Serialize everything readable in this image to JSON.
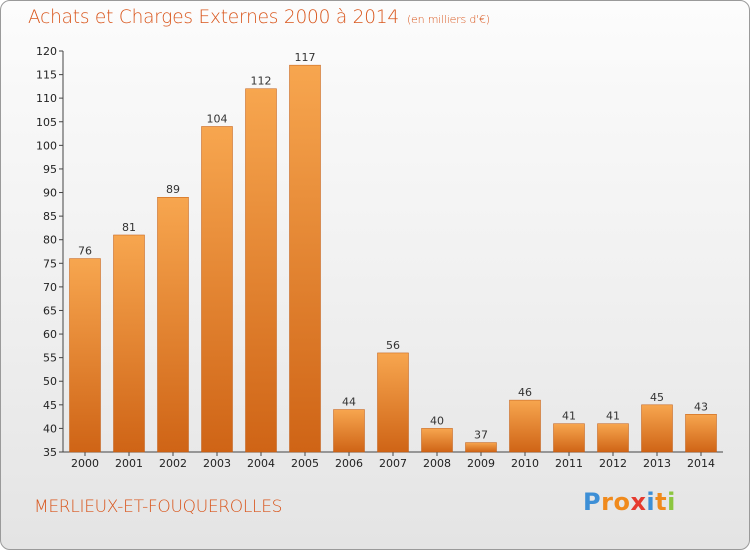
{
  "chart_data": {
    "type": "bar",
    "title": "Achats et Charges Externes 2000 à 2014",
    "unit_label": "(en milliers d'€)",
    "categories": [
      "2000",
      "2001",
      "2002",
      "2003",
      "2004",
      "2005",
      "2006",
      "2007",
      "2008",
      "2009",
      "2010",
      "2011",
      "2012",
      "2013",
      "2014"
    ],
    "values": [
      76,
      81,
      89,
      104,
      112,
      117,
      44,
      56,
      40,
      37,
      46,
      41,
      41,
      45,
      43
    ],
    "ylim": [
      35,
      120
    ],
    "yticks": [
      35,
      40,
      45,
      50,
      55,
      60,
      65,
      70,
      75,
      80,
      85,
      90,
      95,
      100,
      105,
      110,
      115,
      120
    ],
    "xlabel": "",
    "ylabel": "",
    "grid": false,
    "bar_color_light": "#f7a64f",
    "bar_color_dark": "#cf6416"
  },
  "footer": {
    "commune": "MERLIEUX-ET-FOUQUEROLLES",
    "logo_letters": [
      "P",
      "r",
      "o",
      "x",
      "i",
      "t",
      "i"
    ],
    "logo_colors": [
      "#3d8fd6",
      "#f08a1c",
      "#f08a1c",
      "#e63a2e",
      "#3d8fd6",
      "#f08a1c",
      "#8cc63f"
    ]
  },
  "colors": {
    "accent": "#d9561c"
  }
}
